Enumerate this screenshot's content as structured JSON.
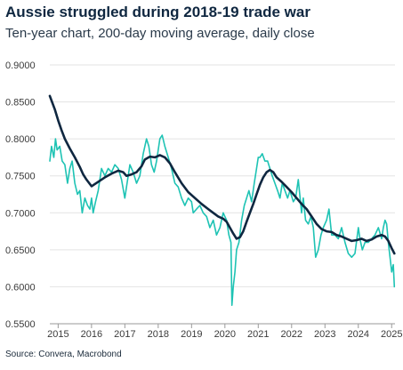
{
  "title": "Aussie struggled during 2018-19 trade war",
  "subtitle": "Ten-year chart, 200-day moving average, daily close",
  "source": "Source: Convera, Macrobond",
  "chart_data": {
    "type": "line",
    "title": "Aussie struggled during 2018-19 trade war",
    "subtitle": "Ten-year chart, 200-day moving average, daily close",
    "xlabel": "",
    "ylabel": "",
    "xlim": [
      2014.75,
      2025.1
    ],
    "ylim": [
      0.55,
      0.9
    ],
    "grid": "horizontal",
    "legend": "none",
    "y_ticks": [
      "0.5500",
      "0.6000",
      "0.6500",
      "0.7000",
      "0.7500",
      "0.8000",
      "0.8500",
      "0.9000"
    ],
    "x_ticks": [
      "2015",
      "2016",
      "2017",
      "2018",
      "2019",
      "2020",
      "2021",
      "2022",
      "2023",
      "2024",
      "2025"
    ],
    "colors": {
      "daily_close": "#1ec3b4",
      "moving_average": "#0f2740"
    },
    "series": [
      {
        "key": "daily_close",
        "x": [
          2014.75,
          2014.8,
          2014.87,
          2014.92,
          2014.97,
          2015.05,
          2015.12,
          2015.2,
          2015.28,
          2015.35,
          2015.42,
          2015.5,
          2015.58,
          2015.65,
          2015.72,
          2015.8,
          2015.88,
          2015.95,
          2016.0,
          2016.05,
          2016.12,
          2016.2,
          2016.3,
          2016.4,
          2016.5,
          2016.6,
          2016.7,
          2016.8,
          2016.9,
          2017.0,
          2017.05,
          2017.15,
          2017.25,
          2017.35,
          2017.45,
          2017.55,
          2017.65,
          2017.72,
          2017.8,
          2017.88,
          2017.95,
          2018.05,
          2018.12,
          2018.2,
          2018.3,
          2018.4,
          2018.5,
          2018.6,
          2018.7,
          2018.8,
          2018.9,
          2019.0,
          2019.05,
          2019.15,
          2019.25,
          2019.35,
          2019.45,
          2019.55,
          2019.65,
          2019.75,
          2019.85,
          2019.95,
          2020.05,
          2020.12,
          2020.18,
          2020.21,
          2020.25,
          2020.3,
          2020.35,
          2020.42,
          2020.5,
          2020.58,
          2020.65,
          2020.72,
          2020.8,
          2020.88,
          2020.95,
          2021.0,
          2021.05,
          2021.12,
          2021.2,
          2021.28,
          2021.35,
          2021.42,
          2021.5,
          2021.58,
          2021.65,
          2021.72,
          2021.8,
          2021.88,
          2021.95,
          2022.05,
          2022.12,
          2022.2,
          2022.3,
          2022.35,
          2022.42,
          2022.5,
          2022.58,
          2022.65,
          2022.72,
          2022.8,
          2022.88,
          2022.95,
          2023.05,
          2023.12,
          2023.2,
          2023.3,
          2023.4,
          2023.5,
          2023.6,
          2023.7,
          2023.8,
          2023.9,
          2024.0,
          2024.05,
          2024.12,
          2024.2,
          2024.3,
          2024.4,
          2024.5,
          2024.6,
          2024.7,
          2024.75,
          2024.8,
          2024.85,
          2024.9,
          2024.95,
          2025.0,
          2025.05,
          2025.08
        ],
        "values": [
          0.77,
          0.79,
          0.775,
          0.8,
          0.785,
          0.79,
          0.77,
          0.765,
          0.74,
          0.76,
          0.77,
          0.74,
          0.725,
          0.73,
          0.7,
          0.72,
          0.71,
          0.705,
          0.72,
          0.7,
          0.715,
          0.73,
          0.76,
          0.75,
          0.76,
          0.755,
          0.765,
          0.76,
          0.745,
          0.72,
          0.735,
          0.765,
          0.755,
          0.74,
          0.75,
          0.78,
          0.8,
          0.79,
          0.765,
          0.755,
          0.77,
          0.8,
          0.805,
          0.79,
          0.775,
          0.76,
          0.74,
          0.735,
          0.72,
          0.71,
          0.72,
          0.715,
          0.7,
          0.705,
          0.71,
          0.7,
          0.695,
          0.68,
          0.69,
          0.67,
          0.68,
          0.7,
          0.69,
          0.67,
          0.66,
          0.575,
          0.6,
          0.62,
          0.65,
          0.66,
          0.69,
          0.71,
          0.72,
          0.73,
          0.715,
          0.74,
          0.76,
          0.775,
          0.775,
          0.78,
          0.77,
          0.77,
          0.76,
          0.75,
          0.74,
          0.73,
          0.72,
          0.74,
          0.73,
          0.72,
          0.73,
          0.715,
          0.72,
          0.745,
          0.7,
          0.72,
          0.69,
          0.685,
          0.695,
          0.68,
          0.64,
          0.65,
          0.67,
          0.68,
          0.69,
          0.705,
          0.67,
          0.67,
          0.665,
          0.68,
          0.66,
          0.645,
          0.64,
          0.645,
          0.68,
          0.665,
          0.65,
          0.66,
          0.66,
          0.665,
          0.67,
          0.68,
          0.665,
          0.68,
          0.69,
          0.685,
          0.66,
          0.64,
          0.62,
          0.63,
          0.6
        ]
      },
      {
        "key": "moving_average",
        "x": [
          2014.75,
          2014.9,
          2015.0,
          2015.1,
          2015.2,
          2015.35,
          2015.5,
          2015.65,
          2015.75,
          2015.85,
          2016.0,
          2016.2,
          2016.4,
          2016.6,
          2016.8,
          2016.95,
          2017.05,
          2017.2,
          2017.35,
          2017.5,
          2017.6,
          2017.75,
          2017.9,
          2018.05,
          2018.2,
          2018.35,
          2018.5,
          2018.7,
          2018.9,
          2019.1,
          2019.3,
          2019.5,
          2019.65,
          2019.8,
          2019.95,
          2020.05,
          2020.15,
          2020.25,
          2020.35,
          2020.45,
          2020.55,
          2020.65,
          2020.75,
          2020.85,
          2020.95,
          2021.05,
          2021.15,
          2021.25,
          2021.35,
          2021.45,
          2021.55,
          2021.7,
          2021.85,
          2022.0,
          2022.15,
          2022.3,
          2022.45,
          2022.6,
          2022.75,
          2022.9,
          2023.05,
          2023.2,
          2023.35,
          2023.5,
          2023.65,
          2023.8,
          2023.95,
          2024.1,
          2024.25,
          2024.4,
          2024.55,
          2024.7,
          2024.8,
          2024.9,
          2025.0,
          2025.08
        ],
        "values": [
          0.858,
          0.84,
          0.825,
          0.812,
          0.8,
          0.787,
          0.775,
          0.762,
          0.752,
          0.745,
          0.736,
          0.742,
          0.748,
          0.753,
          0.757,
          0.755,
          0.75,
          0.752,
          0.755,
          0.763,
          0.772,
          0.776,
          0.775,
          0.778,
          0.775,
          0.767,
          0.755,
          0.74,
          0.728,
          0.72,
          0.712,
          0.705,
          0.7,
          0.695,
          0.692,
          0.688,
          0.68,
          0.672,
          0.665,
          0.667,
          0.675,
          0.688,
          0.7,
          0.712,
          0.725,
          0.738,
          0.748,
          0.755,
          0.758,
          0.755,
          0.748,
          0.742,
          0.735,
          0.728,
          0.72,
          0.712,
          0.705,
          0.695,
          0.685,
          0.678,
          0.675,
          0.674,
          0.67,
          0.668,
          0.665,
          0.662,
          0.663,
          0.665,
          0.662,
          0.664,
          0.668,
          0.67,
          0.668,
          0.662,
          0.652,
          0.645
        ]
      }
    ]
  }
}
